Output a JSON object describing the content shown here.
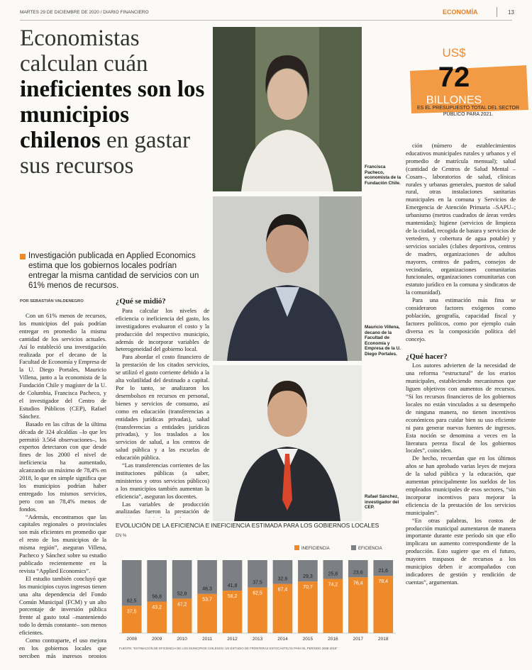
{
  "header": {
    "dateline": "MARTES 29 DE DICIEMBRE DE 2020 / DIARIO FINANCIERO",
    "section": "ECONOMÍA",
    "page": "13"
  },
  "headline": [
    "Economistas calculan cuán ",
    "ineficientes son los municipios chilenos",
    " en gastar sus recursos"
  ],
  "lead": "Investigación publicada en Applied Economics estima que los gobiernos locales podrían entregar la misma cantidad de servicios con un 61% menos de recursos.",
  "byline": "POR SEBASTIÁN VALDENEGRO",
  "callout": {
    "currency": "US$",
    "number": "72",
    "unit": "BILLONES",
    "text": "ES EL PRESUPUESTO TOTAL DEL SECTOR PÚBLICO PARA 2021."
  },
  "captions": [
    "Francisca Pacheco, economista de la Fundación Chile.",
    "Mauricio Villena, decano de la Facultad de Economía y Empresa de la U. Diego Portales.",
    "Rafael Sánchez, investigador del CEP."
  ],
  "column1": [
    "Con un 61% menos de recursos, los municipios del país podrían entregar en promedio la misma cantidad de los servicios actuales. Así lo estableció una investigación realizada por el decano de la Facultad de Economía y Empresa de la U. Diego Portales, Mauricio Villena, junto a la economista de la Fundación Chile y magíster de la U. de Columbia, Francisca Pacheco, y el investigador del Centro de Estudios Públicos (CEP), Rafael Sánchez.",
    "Basado en las cifras de la última década de 324 alcaldías –lo que les permitió 3.564 observaciones–, los expertos detectaron con que desde fines de los 2000 el nivel de ineficiencia ha aumentado, alcanzando un máximo de 78,4% en 2018, lo que en simple significa que los municipios podrían haber entregado los mismos servicios, pero con un 78,4% menos de fondos.",
    "“Además, encontramos que las capitales regionales o provinciales son más eficientes en promedio que el resto de los municipios de la misma región”, aseguran Villena, Pacheco y Sánchez sobre su estudio publicado recientemente en la revista “Applied Economics”.",
    "El estudio también concluyó que los municipios cuyos ingresos tienen una alta dependencia del Fondo Común Municipal (FCM) y un alto porcentaje de inversión pública frente al gasto total –manteniendo todo lo demás constante– son menos eficientes.",
    "Como contraparte, el uso mejora en los gobiernos locales que perciben más ingresos propios provenientes de más impuestos territoriales o patentes comerciales."
  ],
  "column2": {
    "heading": "¿Qué se midió?",
    "paragraphs": [
      "Para calcular los niveles de eficiencia o ineficiencia del gasto, los investigadores evaluaron el costo y la producción del respectivo municipio, además de incorporar variables de heterogeneidad del gobierno local.",
      "Para abordar el costo financiero de la prestación de los citados servicios, se utilizó el gasto corriente debido a la alta volatilidad del destinado a capital. Por lo tanto, se analizaron los desembolsos en recursos en personal, bienes y servicios de consumo, así como en educación (transferencias a entidades jurídicas privadas), salud (transferencias a entidades jurídicas privadas), y los traslados a los servicios de salud, a los centros de salud pública y a las escuelas de educación pública.",
      "“Las transferencias corrientes de las instituciones públicas (a saber, ministerios y otros servicios públicos) a los municipios también aumentan la eficiencia”, aseguran los docentes.",
      "Las variables de producción analizadas fueron la prestación de servicios municipales en educa-"
    ]
  },
  "column3": {
    "paragraphs": [
      "ción (número de establecimientos educativos municipales rurales y urbanos y el promedio de matrícula mensual); salud (cantidad de Centros de Salud Mental –Cosam–, laboratorios de salud, clínicas rurales y urbanas generales, puestos de salud rural, otras instalaciones sanitarias municipales en la comuna y Servicios de Emergencia de Atención Primaria –SAPU–; urbanismo (metros cuadrados de áreas verdes mantenidas); higiene (servicios de limpieza de la ciudad, recogida de basura y servicios de vertedero, y cobertura de agua potable) y servicios sociales (clubes deportivos, centros de madres, organizaciones de adultos mayores, centros de padres, consejos de vecindario, organizaciones comunitarias funcionales, organizaciones comunitarias con estatuto jurídico en la comuna y sindicatos de la comunidad).",
      "Para una estimación más fina se consideraron factores exógenos como población, geografía, capacidad fiscal y factores políticos, como por ejemplo cuán diversa es la composición política del concejo."
    ],
    "heading": "¿Qué hacer?",
    "paragraphs2": [
      "Los autores advierten de la necesidad de una reforma “estructural” de los erarios municipales, estableciendo mecanismos que liguen objetivos con aumentos de recursos. “Si los recursos financieros de los gobiernos locales no están vinculados a su desempeño de ninguna manera, no tienen incentivos económicos para cuidar bien su uso eficiente ni para generar nuevas fuentes de ingresos. Esta noción se denomina a veces en la literatura pereza fiscal de los gobiernos locales”, coinciden.",
      "De hecho, recuerdan que en los últimos años se han aprobado varias leyes de mejora de la salud pública y la educación, que aumentan principalmente los sueldos de los empleados municipales de esos sectores, “sin incorporar incentivos para mejorar la eficiencia de la prestación de los servicios municipales”.",
      "“En otras palabras, los costos de producción municipal aumentaron de manera importante durante este período sin que ello implicara un aumento correspondiente de la producción. Esto sugiere que en el futuro, mayores traspasos de recursos a los municipios deben ir acompañados con indicadores de gestión y rendición de cuentas”, argumentan."
    ]
  },
  "chart_data": {
    "type": "bar",
    "stacked": true,
    "title": "EVOLUCIÓN DE LA EFICIENCIA E INEFICIENCIA ESTIMADA PARA LOS GOBIERNOS LOCALES",
    "y_label": "EN %",
    "source": "FUENTE: “ESTIMACIÓN DE EFICIENCIA DE LOS MUNICIPIOS CHILENOS: UN ESTUDIO DE FRONTERAS ESTOCÁSTICAS PARA EL PERÍODO 2008-2018”",
    "categories": [
      "2008",
      "2009",
      "2010",
      "2011",
      "2012",
      "2013",
      "2014",
      "2015",
      "2016",
      "2017",
      "2018"
    ],
    "series": [
      {
        "name": "INEFICIENCIA",
        "color": "#ef8a2b",
        "values": [
          37.5,
          43.2,
          47.2,
          53.7,
          58.2,
          62.5,
          67.4,
          70.7,
          74.2,
          76.4,
          78.4
        ],
        "value_labels": [
          "37,5",
          "43,2",
          "47,2",
          "53,7",
          "58,2",
          "62,5",
          "67,4",
          "70,7",
          "74,2",
          "76,4",
          "78,4"
        ]
      },
      {
        "name": "EFICIENCIA",
        "color": "#7c7f84",
        "values": [
          62.5,
          56.8,
          52.8,
          46.3,
          41.8,
          37.5,
          32.6,
          29.3,
          25.8,
          23.6,
          21.6
        ],
        "value_labels": [
          "62,5",
          "56,8",
          "52,8",
          "46,3",
          "41,8",
          "37,5",
          "32,6",
          "29,3",
          "25,8",
          "23,6",
          "21,6"
        ]
      }
    ],
    "ylim": [
      0,
      100
    ],
    "legend": "top-right"
  }
}
